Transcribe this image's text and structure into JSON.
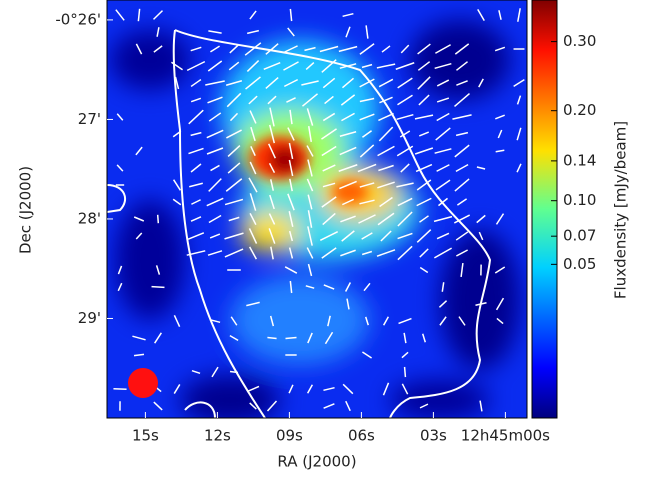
{
  "chart_data": {
    "type": "image",
    "xlabel": "RA (J2000)",
    "ylabel": "Dec (J2000)",
    "xlim": [
      16.6,
      -0.9
    ],
    "xticks": [
      {
        "value": 15,
        "label": "15s"
      },
      {
        "value": 12,
        "label": "12s"
      },
      {
        "value": 9,
        "label": "09s"
      },
      {
        "value": 6,
        "label": "06s"
      },
      {
        "value": 3,
        "label": "03s"
      },
      {
        "value": 0,
        "label": "12h45m00s"
      }
    ],
    "ylim": [
      30.0,
      25.8
    ],
    "yticks": [
      {
        "value": 26,
        "label": "-0°26'"
      },
      {
        "value": 27,
        "label": "27'"
      },
      {
        "value": 28,
        "label": "28'"
      },
      {
        "value": 29,
        "label": "29'"
      }
    ],
    "colorbar": {
      "label": "Fluxdensity [mJy/beam]",
      "scale": "sqrt",
      "clim": [
        0,
        0.37
      ],
      "ticks": [
        {
          "value": 0.3,
          "label": "0.30"
        },
        {
          "value": 0.2,
          "label": "0.20"
        },
        0.14,
        {
          "value": 0.1,
          "label": "0.10"
        },
        0.07,
        0.05
      ]
    }
  }
}
